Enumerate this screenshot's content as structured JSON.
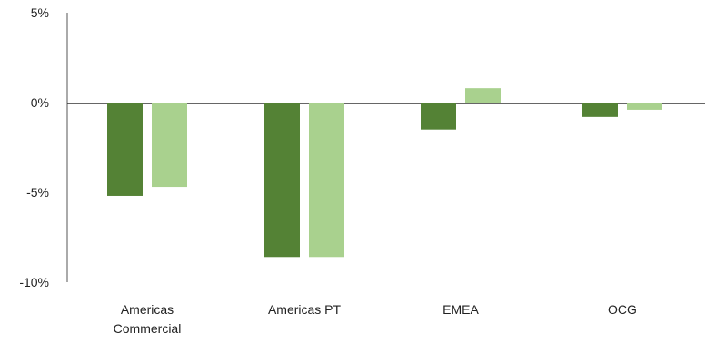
{
  "chart_data": {
    "type": "bar",
    "title": "",
    "xlabel": "",
    "ylabel": "",
    "categories": [
      [
        "Americas",
        "Commercial"
      ],
      [
        "Americas PT"
      ],
      [
        "EMEA"
      ],
      [
        "OCG"
      ]
    ],
    "series": [
      {
        "values": [
          -5.2,
          -8.6,
          -1.5,
          -0.8
        ],
        "color": "#548235"
      },
      {
        "values": [
          -4.7,
          -8.6,
          0.8,
          -0.4
        ],
        "color": "#A9D18E"
      }
    ],
    "ylim": [
      -10,
      5
    ],
    "yticks": [
      5,
      0,
      -5,
      -10
    ],
    "ytick_labels": [
      "5%",
      "0%",
      "-5%",
      "-10%"
    ],
    "grid": false,
    "legend": "none"
  }
}
